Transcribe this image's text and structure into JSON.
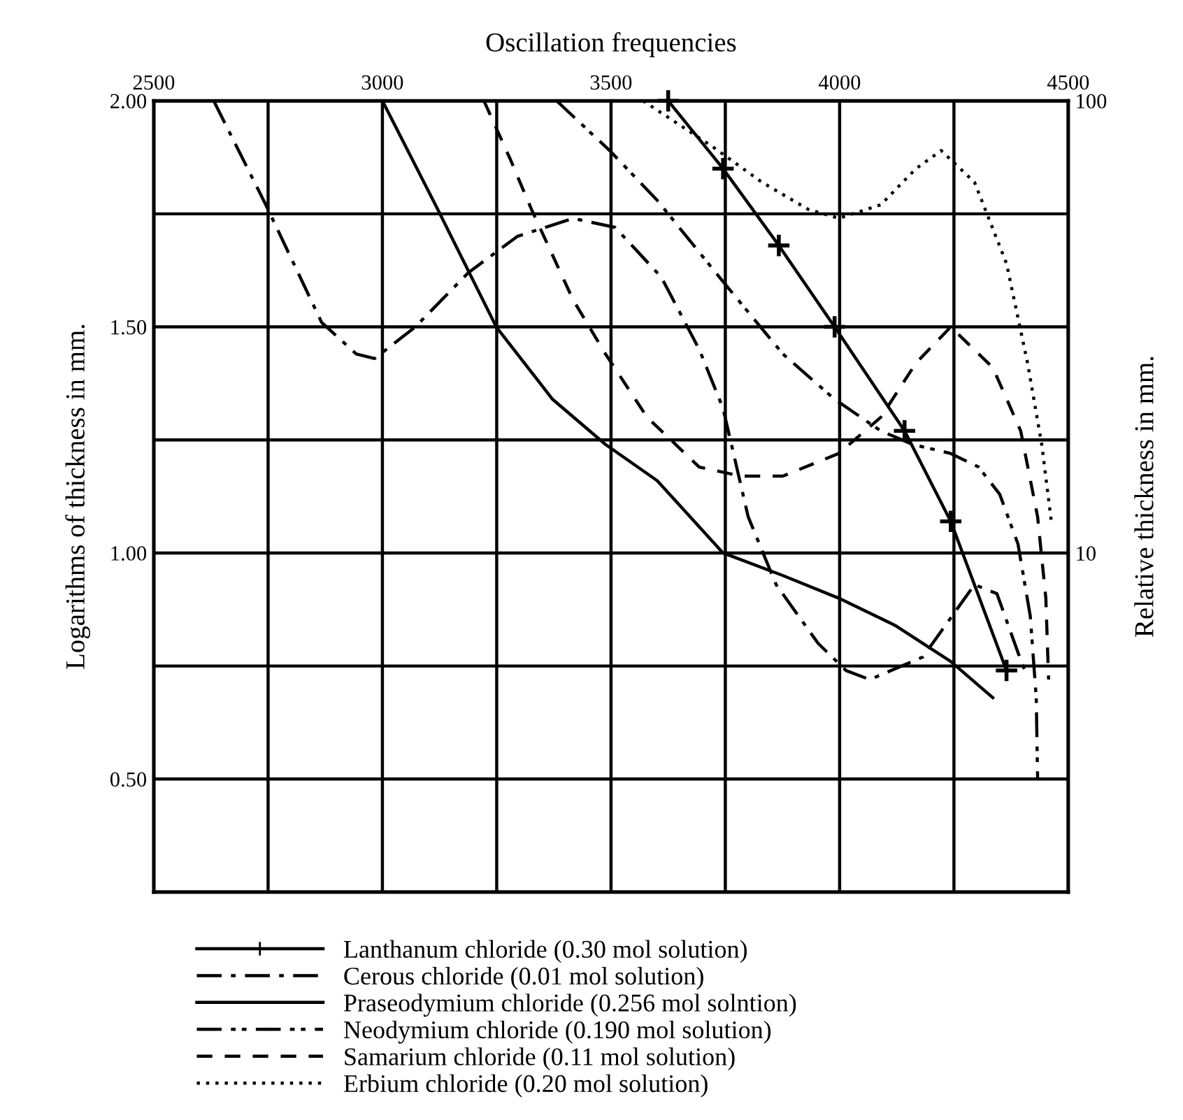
{
  "chart_data": {
    "type": "line",
    "xlabel": "Oscillation frequencies",
    "ylabel": "Logarithms of thickness in mm.",
    "y2label": "Relative thickness in mm.",
    "xlim": [
      2500,
      4500
    ],
    "xticks": [
      2500,
      {
        "value": 2750,
        "label": null
      },
      3000,
      {
        "value": 3250,
        "label": null
      },
      3500,
      {
        "value": 3750,
        "label": null
      },
      4000,
      {
        "value": 4250,
        "label": null
      },
      4500
    ],
    "ylim": [
      0.25,
      2.0
    ],
    "yticks": [
      {
        "value": 0.25,
        "label": null
      },
      {
        "value": 0.5,
        "label": "0.50"
      },
      {
        "value": 0.75,
        "label": null
      },
      {
        "value": 1.0,
        "label": "1.00"
      },
      {
        "value": 1.25,
        "label": null
      },
      {
        "value": 1.5,
        "label": "1.50"
      },
      {
        "value": 1.75,
        "label": null
      },
      {
        "value": 2.0,
        "label": "2.00"
      }
    ],
    "log": "y2",
    "y2lim": [
      1.78,
      100
    ],
    "y2ticks": [
      10,
      100
    ],
    "grid": true,
    "legend": "bottom",
    "marker": "none",
    "series": [
      {
        "name": "Lanthanum chloride (0.30 mol solution)",
        "color": "#000000",
        "marker": "cross",
        "line_style": "solid",
        "x": [
          3625,
          3745,
          3867,
          3989,
          4142,
          4243,
          4365
        ],
        "values": [
          2.0,
          1.85,
          1.68,
          1.5,
          1.27,
          1.07,
          0.74
        ]
      },
      {
        "name": "Cerous chloride (0.01 mol solution)",
        "color": "#000000",
        "line_style": "dashdot",
        "x": [
          2631,
          2745,
          2867,
          2943,
          2983,
          3072,
          3188,
          3295,
          3417,
          3509,
          3610,
          3693,
          3745,
          3800,
          3861,
          3953,
          4014,
          4066,
          4182,
          4295,
          4344,
          4390,
          4405
        ],
        "values": [
          2.0,
          1.77,
          1.51,
          1.44,
          1.43,
          1.5,
          1.62,
          1.7,
          1.74,
          1.72,
          1.61,
          1.45,
          1.32,
          1.08,
          0.93,
          0.8,
          0.74,
          0.72,
          0.77,
          0.93,
          0.91,
          0.78,
          0.74
        ]
      },
      {
        "name": "Praseodymium chloride (0.256 mol solntion)",
        "color": "#000000",
        "line_style": "solid",
        "x": [
          3000,
          3121,
          3249,
          3372,
          3488,
          3601,
          3745,
          3876,
          3998,
          4121,
          4243,
          4335
        ],
        "values": [
          2.0,
          1.76,
          1.5,
          1.34,
          1.24,
          1.16,
          1.0,
          0.95,
          0.9,
          0.84,
          0.76,
          0.68
        ]
      },
      {
        "name": "Neodymium chloride (0.190 mol solution)",
        "color": "#000000",
        "line_style": "dashdotdot",
        "x": [
          3381,
          3497,
          3601,
          3745,
          3876,
          3989,
          4090,
          4160,
          4243,
          4304,
          4350,
          4390,
          4417,
          4430,
          4433
        ],
        "values": [
          2.0,
          1.89,
          1.78,
          1.6,
          1.44,
          1.34,
          1.27,
          1.24,
          1.22,
          1.19,
          1.13,
          1.02,
          0.86,
          0.68,
          0.5
        ]
      },
      {
        "name": "Samarium chloride (0.11 mol solution)",
        "color": "#000000",
        "line_style": "dashed",
        "x": [
          3222,
          3280,
          3326,
          3417,
          3488,
          3579,
          3693,
          3784,
          3876,
          3998,
          4090,
          4167,
          4243,
          4335,
          4396,
          4433,
          4451,
          4457
        ],
        "values": [
          2.0,
          1.87,
          1.76,
          1.56,
          1.44,
          1.3,
          1.19,
          1.17,
          1.17,
          1.22,
          1.3,
          1.42,
          1.5,
          1.41,
          1.27,
          1.08,
          0.9,
          0.72
        ]
      },
      {
        "name": "Erbium chloride (0.20 mol solution)",
        "color": "#000000",
        "line_style": "dotted",
        "x": [
          3570,
          3720,
          3830,
          3931,
          3998,
          4090,
          4167,
          4222,
          4295,
          4365,
          4411,
          4442,
          4463
        ],
        "values": [
          2.0,
          1.9,
          1.82,
          1.76,
          1.74,
          1.77,
          1.85,
          1.89,
          1.82,
          1.64,
          1.42,
          1.24,
          1.07
        ]
      }
    ]
  }
}
